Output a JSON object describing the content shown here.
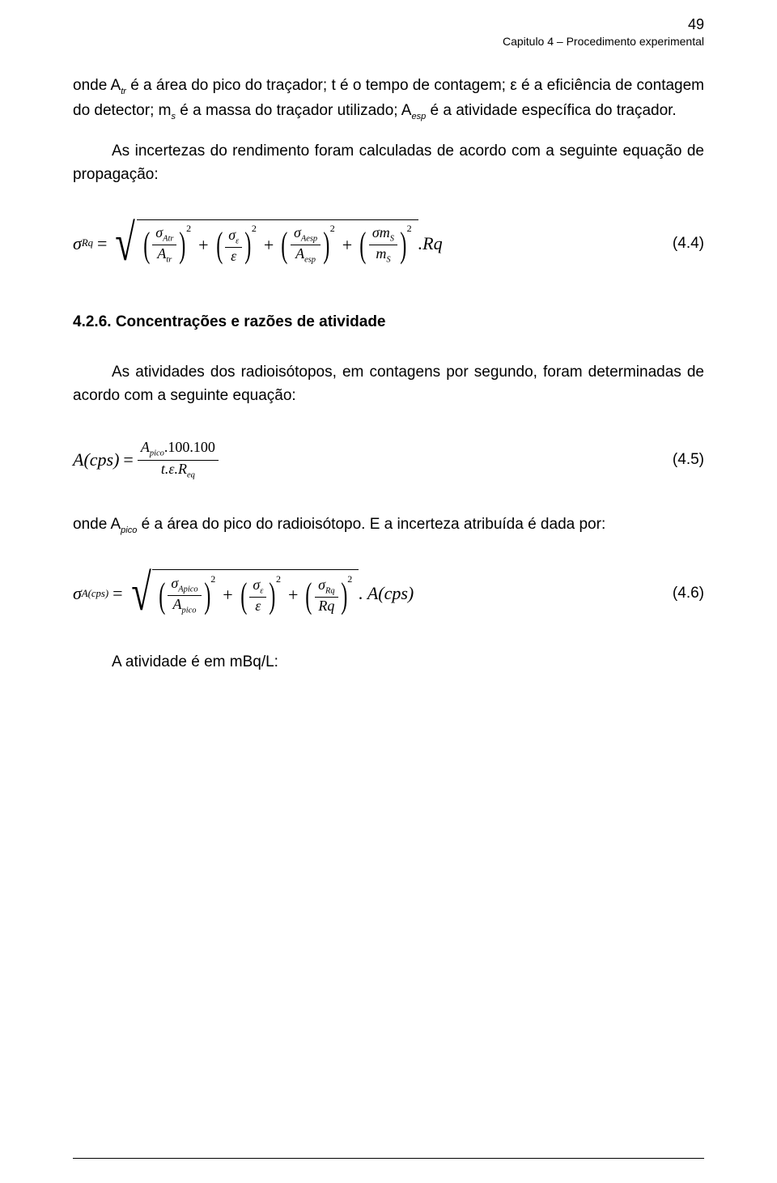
{
  "page_number": "49",
  "chapter_header": "Capitulo 4 – Procedimento experimental",
  "para1_a": "onde A",
  "para1_b": " é a área do pico do traçador; t é o tempo de contagem; ε é a eficiência de contagem do detector; m",
  "para1_c": " é a massa do traçador utilizado; A",
  "para1_d": " é a atividade específica do traçador.",
  "sub_tr": "tr",
  "sub_s": "s",
  "sub_esp": "esp",
  "para2": "As incertezas do rendimento foram calculadas de acordo com a seguinte equação de propagação:",
  "eq44": {
    "lhs_sigma": "σ",
    "lhs_sub": "Rq",
    "eq": "=",
    "t1_num": "σ",
    "t1_num_sub": "Atr",
    "t1_den": "A",
    "t1_den_sub": "tr",
    "t2_num": "σ",
    "t2_num_sub": "ε",
    "t2_den": "ε",
    "t3_num": "σ",
    "t3_num_sub": "Aesp",
    "t3_den": "A",
    "t3_den_sub": "esp",
    "t4_num": "σm",
    "t4_num_sub": "S",
    "t4_den": "m",
    "t4_den_sub": "S",
    "plus": "+",
    "sq": "2",
    "tail": ".Rq",
    "number": "(4.4)"
  },
  "section_title": "4.2.6. Concentrações e razões de atividade",
  "para3": "As atividades dos radioisótopos, em contagens por segundo, foram determinadas de acordo com a seguinte equação:",
  "eq45": {
    "lhs": "A(cps)",
    "eq": "=",
    "num_a": "A",
    "num_sub": "pico",
    "num_tail": ".100.100",
    "den": "t.ε.R",
    "den_sub": "eq",
    "number": "(4.5)"
  },
  "para4_a": "onde A",
  "para4_sub": "pico",
  "para4_b": " é a área do pico do radioisótopo. E a incerteza atribuída é dada por:",
  "eq46": {
    "lhs_sigma": "σ",
    "lhs_sub": "A(cps)",
    "eq": "=",
    "t1_num": "σ",
    "t1_num_sub": "Apico",
    "t1_den": "A",
    "t1_den_sub": "pico",
    "t2_num": "σ",
    "t2_num_sub": "ε",
    "t2_den": "ε",
    "t3_num": "σ",
    "t3_num_sub": "Rq",
    "t3_den": "Rq",
    "plus": "+",
    "sq": "2",
    "tail": ". A(cps)",
    "number": "(4.6)"
  },
  "para5": "A atividade é em mBq/L:"
}
